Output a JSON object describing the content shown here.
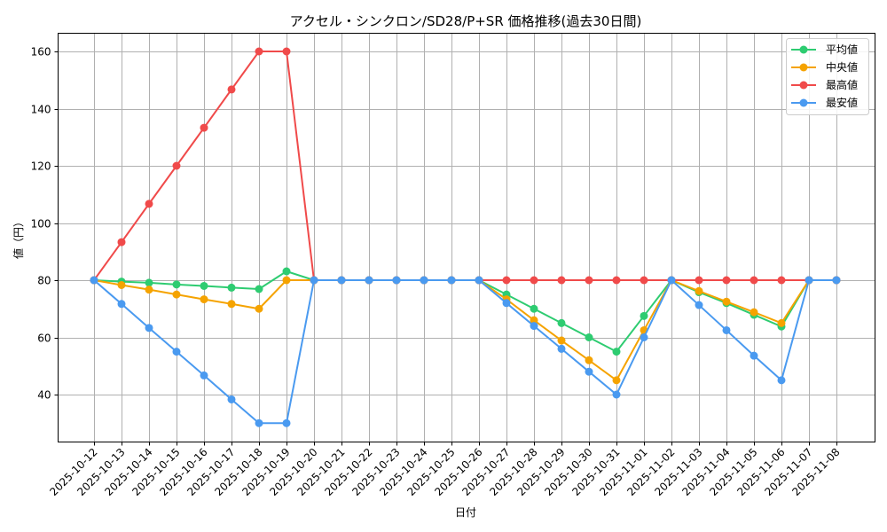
{
  "chart_data": {
    "type": "line",
    "title": "アクセル・シンクロン/SD28/P+SR 価格推移(過去30日間)",
    "xlabel": "日付",
    "ylabel": "値（円）",
    "ylim": [
      24,
      166
    ],
    "yticks": [
      40,
      60,
      80,
      100,
      120,
      140,
      160
    ],
    "grid": true,
    "legend_position": "upper right",
    "x": [
      "2025-10-12",
      "2025-10-13",
      "2025-10-14",
      "2025-10-15",
      "2025-10-16",
      "2025-10-17",
      "2025-10-18",
      "2025-10-19",
      "2025-10-20",
      "2025-10-21",
      "2025-10-22",
      "2025-10-23",
      "2025-10-24",
      "2025-10-25",
      "2025-10-26",
      "2025-10-27",
      "2025-10-28",
      "2025-10-29",
      "2025-10-30",
      "2025-10-31",
      "2025-11-01",
      "2025-11-02",
      "2025-11-03",
      "2025-11-04",
      "2025-11-05",
      "2025-11-06",
      "2025-11-07",
      "2025-11-08"
    ],
    "series": [
      {
        "name": "平均値",
        "color": "#2ecc71",
        "values": [
          80,
          79.5,
          79.1,
          78.5,
          78.0,
          77.4,
          76.9,
          83.1,
          80,
          80,
          80,
          80,
          80,
          80,
          80,
          75.0,
          70.0,
          65.0,
          60.0,
          55.0,
          67.5,
          80,
          75.8,
          72.0,
          67.9,
          63.8,
          80,
          80
        ]
      },
      {
        "name": "中央値",
        "color": "#f5a300",
        "values": [
          80,
          78.3,
          76.7,
          75.0,
          73.3,
          71.7,
          70.0,
          80,
          80,
          80,
          80,
          80,
          80,
          80,
          80,
          73.3,
          66.0,
          58.9,
          52.0,
          45.0,
          62.5,
          80,
          76.2,
          72.5,
          68.8,
          65.0,
          80,
          80
        ]
      },
      {
        "name": "最高値",
        "color": "#f04a4a",
        "values": [
          80,
          93.3,
          106.7,
          120,
          133.3,
          146.7,
          160,
          160,
          80,
          80,
          80,
          80,
          80,
          80,
          80,
          80,
          80,
          80,
          80,
          80,
          80,
          80,
          80,
          80,
          80,
          80,
          80,
          80
        ]
      },
      {
        "name": "最安値",
        "color": "#4a9af0",
        "values": [
          80,
          71.7,
          63.3,
          55.0,
          46.7,
          38.3,
          30,
          30,
          80,
          80,
          80,
          80,
          80,
          80,
          80,
          72.0,
          64.0,
          56.0,
          48.0,
          40.0,
          60.0,
          80,
          71.3,
          62.5,
          53.6,
          45.0,
          80,
          80
        ]
      }
    ]
  }
}
